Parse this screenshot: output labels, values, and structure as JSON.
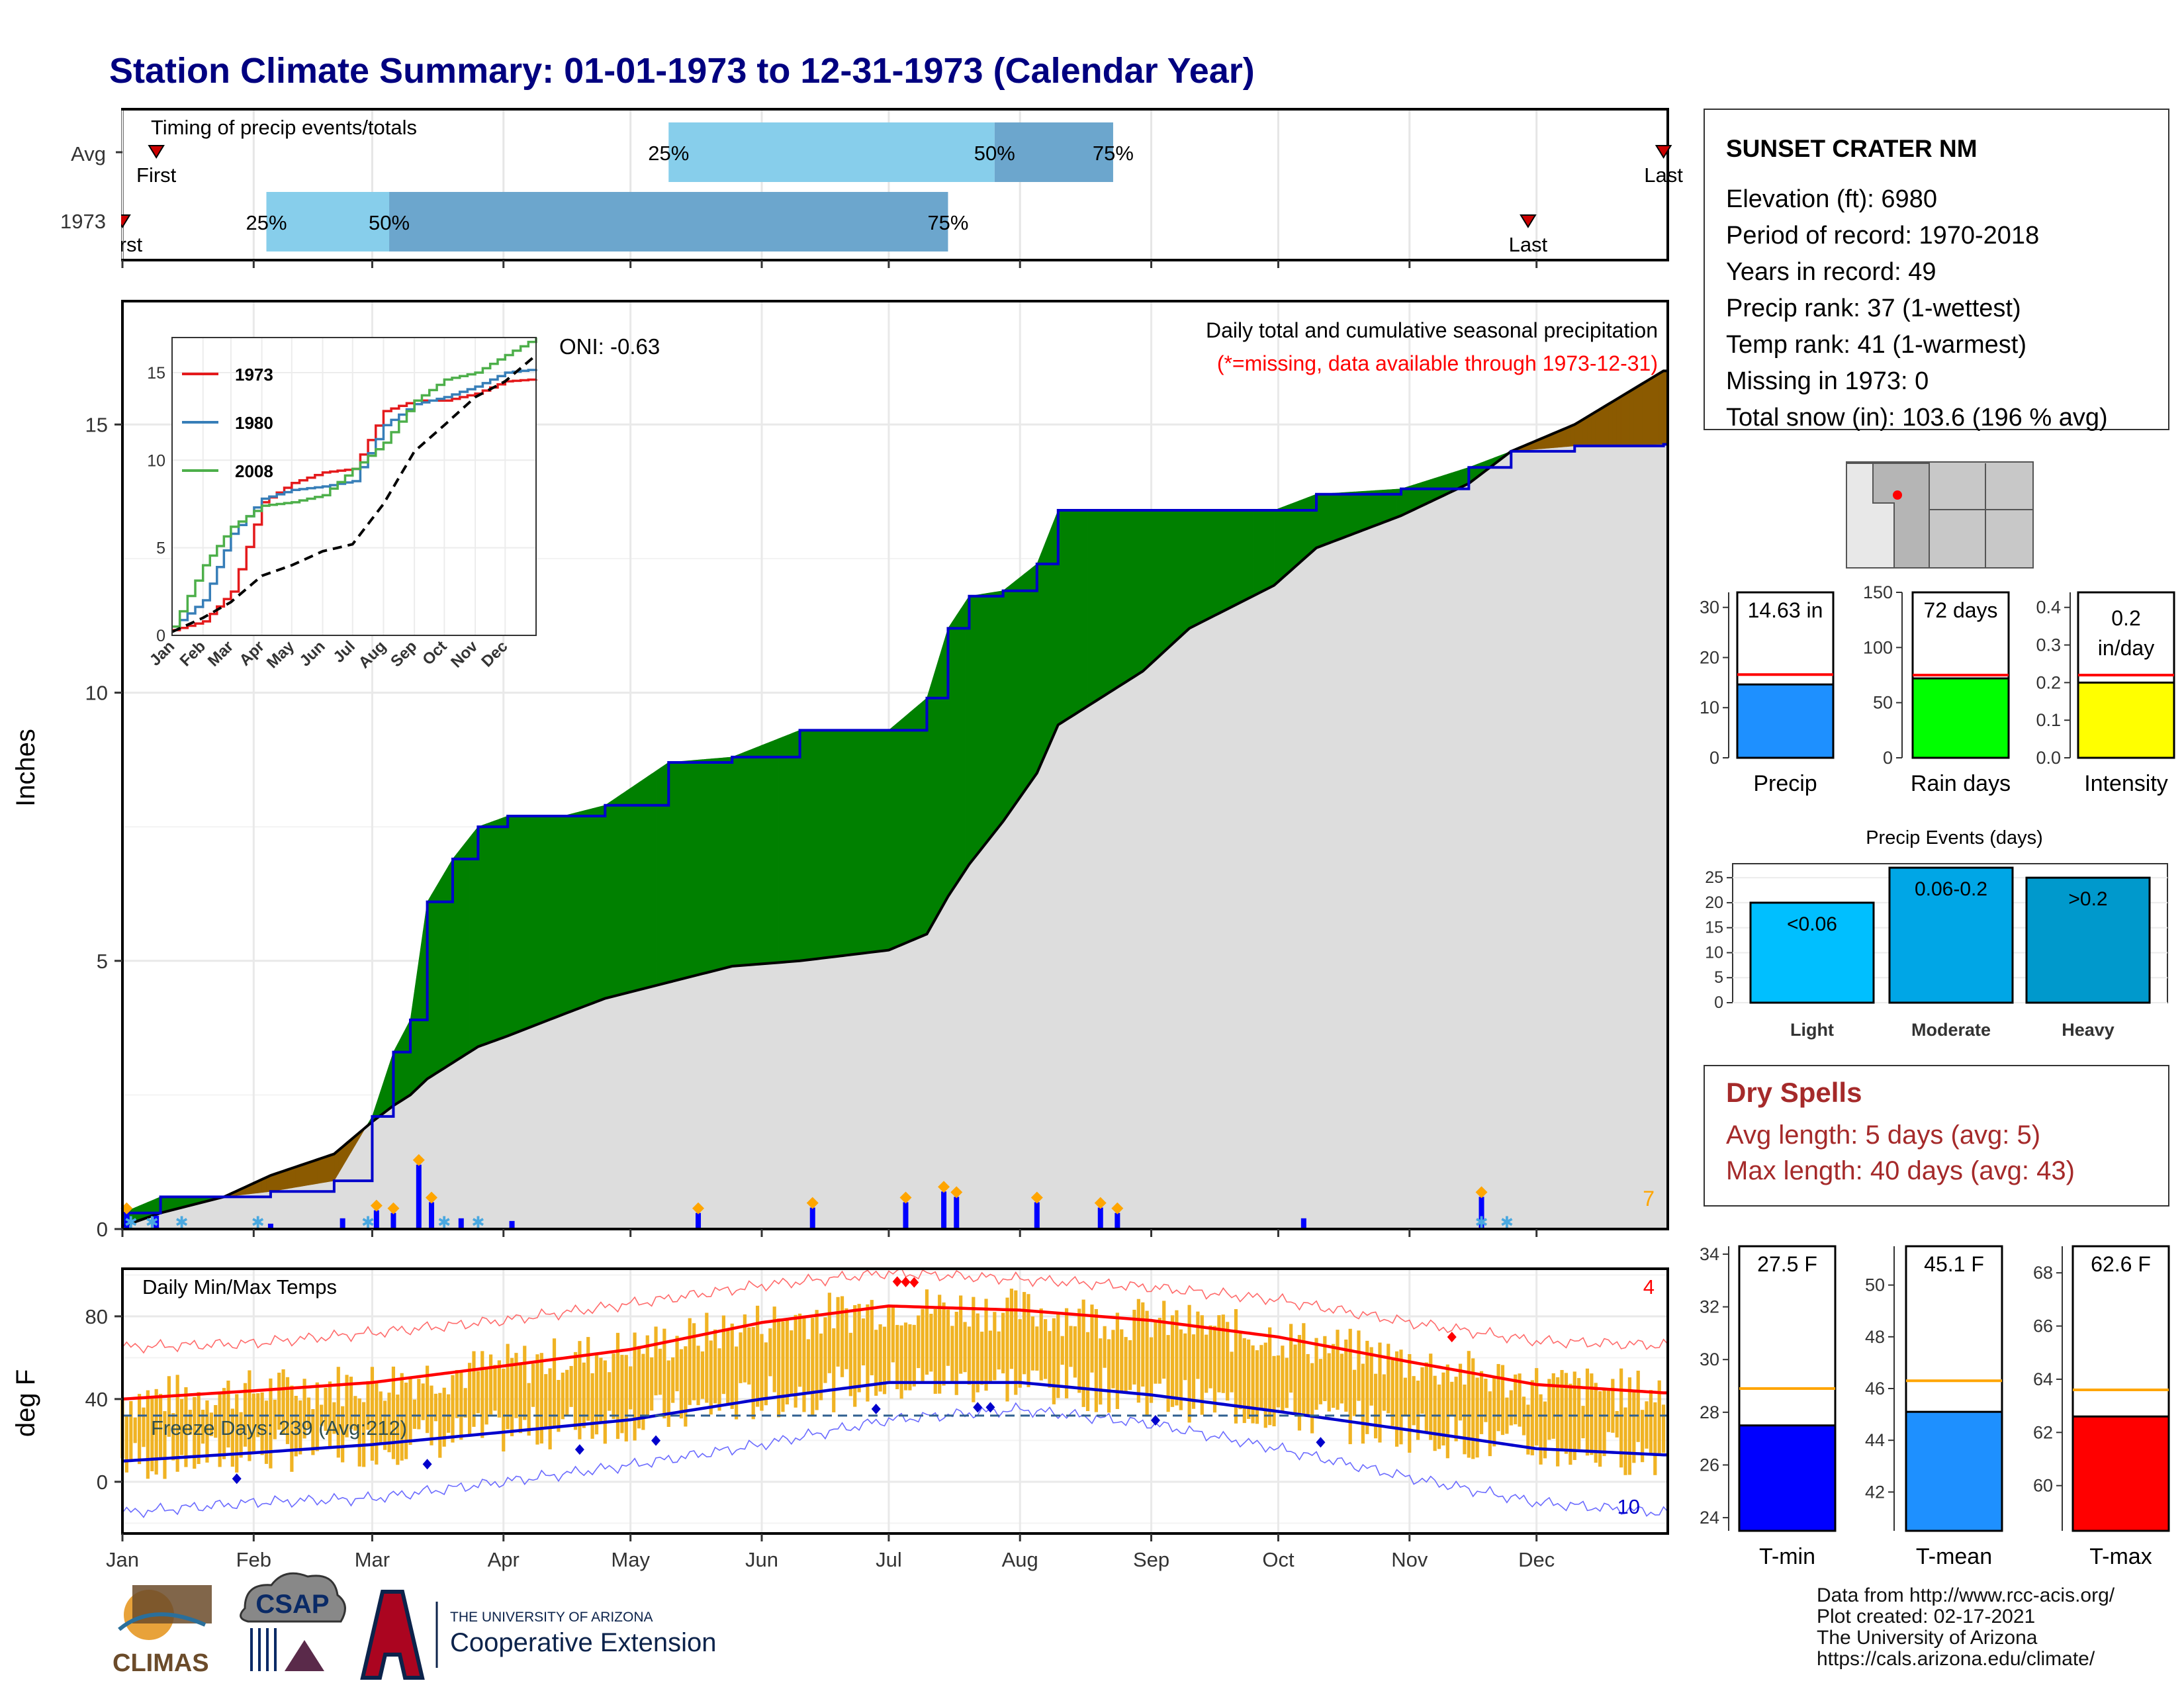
{
  "title": "Station Climate Summary: 01-01-1973 to 12-31-1973 (Calendar Year)",
  "colors": {
    "title": "#000080",
    "normal_fill": "#dddddd",
    "above_fill": "#008000",
    "below_fill": "#8B5A00",
    "cumulative_line": "#0000cc",
    "daily_bar": "#0000ff",
    "light_blue": "#87ceeb",
    "steel_blue": "#6ca6cd",
    "temp_bar": "#f0b323",
    "tmax_line": "#ff0000",
    "tmin_line": "#0000cc",
    "red": "#ff0000",
    "green": "#00ff00",
    "yellow": "#ffff00",
    "dodger": "#1e90ff",
    "dry_spell": "#a52a2a"
  },
  "timing_panel": {
    "label": "Timing of precip events/totals",
    "rows": [
      {
        "name": "Avg",
        "first_label": "First",
        "last_label": "Last",
        "q25_label": "25%",
        "q50_label": "50%",
        "q75_label": "75%"
      },
      {
        "name": "1973",
        "first_label": "First",
        "last_label": "Last",
        "q25_label": "25%",
        "q50_label": "50%",
        "q75_label": "75%"
      }
    ]
  },
  "precip_panel": {
    "ylabel": "Inches",
    "oni": "ONI: -0.63",
    "caption": "Daily total and cumulative seasonal precipitation",
    "missing_note": "(*=missing, data available through 1973-12-31)",
    "corner_count": "7",
    "yticks": [
      "0",
      "5",
      "10",
      "15"
    ]
  },
  "inset": {
    "legend": [
      "1973",
      "1980",
      "2008"
    ],
    "yticks": [
      "0",
      "5",
      "10",
      "15"
    ],
    "xticks": [
      "Jan",
      "Feb",
      "Mar",
      "Apr",
      "May",
      "Jun",
      "Jul",
      "Aug",
      "Sep",
      "Oct",
      "Nov",
      "Dec"
    ],
    "colors": [
      "#e41a1c",
      "#377eb8",
      "#4daf4a"
    ]
  },
  "temp_panel": {
    "ylabel": "deg F",
    "label": "Daily Min/Max Temps",
    "freeze": "Freeze Days: 239 (Avg:212)",
    "corner_max": "4",
    "corner_min": "10",
    "yticks": [
      "0",
      "40",
      "80"
    ],
    "xticks": [
      "Jan",
      "Feb",
      "Mar",
      "Apr",
      "May",
      "Jun",
      "Jul",
      "Aug",
      "Sep",
      "Oct",
      "Nov",
      "Dec"
    ]
  },
  "station": {
    "name": "SUNSET CRATER NM",
    "lines": [
      "Elevation (ft): 6980",
      "Period of record: 1970-2018",
      "Years in record: 49",
      "Precip rank: 37 (1-wettest)",
      "Temp rank: 41 (1-warmest)",
      "Missing in 1973: 0",
      "Total snow (in): 103.6 (196 % avg)"
    ]
  },
  "mini_bars": [
    {
      "label": "Precip",
      "value_text": "14.63 in",
      "value": 14.63,
      "avg": 16.6,
      "ylim": [
        0,
        33
      ],
      "ticks": [
        "0",
        "10",
        "20",
        "30"
      ],
      "tick_vals": [
        0,
        10,
        20,
        30
      ],
      "color": "#1e90ff"
    },
    {
      "label": "Rain days",
      "value_text": "72 days",
      "value": 72,
      "avg": 75,
      "ylim": [
        0,
        150
      ],
      "ticks": [
        "0",
        "50",
        "100",
        "150"
      ],
      "tick_vals": [
        0,
        50,
        100,
        150
      ],
      "color": "#00ff00"
    },
    {
      "label": "Intensity",
      "value_text": "0.2",
      "value_text2": "in/day",
      "value": 0.2,
      "avg": 0.22,
      "ylim": [
        0,
        0.44
      ],
      "ticks": [
        "0.0",
        "0.1",
        "0.2",
        "0.3",
        "0.4"
      ],
      "tick_vals": [
        0,
        0.1,
        0.2,
        0.3,
        0.4
      ],
      "color": "#ffff00"
    }
  ],
  "precip_events": {
    "title": "Precip Events (days)",
    "yticks": [
      "0",
      "5",
      "10",
      "15",
      "20",
      "25"
    ],
    "bars": [
      {
        "label": "Light",
        "text": "<0.06",
        "value": 20,
        "color": "#00bfff"
      },
      {
        "label": "Moderate",
        "text": "0.06-0.2",
        "value": 27,
        "color": "#00a6e6"
      },
      {
        "label": "Heavy",
        "text": ">0.2",
        "value": 25,
        "color": "#0099cc"
      }
    ]
  },
  "dry_spells": {
    "title": "Dry Spells",
    "avg": "Avg length: 5 days (avg: 5)",
    "max": "Max length: 40 days (avg: 43)"
  },
  "temp_bars": [
    {
      "label": "T-min",
      "value_text": "27.5 F",
      "value": 27.5,
      "avg": 28.9,
      "ylim": [
        23.5,
        34.3
      ],
      "ticks": [
        "24",
        "26",
        "28",
        "30",
        "32",
        "34"
      ],
      "tick_vals": [
        24,
        26,
        28,
        30,
        32,
        34
      ],
      "color": "#0000ff"
    },
    {
      "label": "T-mean",
      "value_text": "45.1 F",
      "value": 45.1,
      "avg": 46.3,
      "ylim": [
        40.5,
        51.5
      ],
      "ticks": [
        "42",
        "44",
        "46",
        "48",
        "50"
      ],
      "tick_vals": [
        42,
        44,
        46,
        48,
        50
      ],
      "color": "#1e90ff"
    },
    {
      "label": "T-max",
      "value_text": "62.6 F",
      "value": 62.6,
      "avg": 63.6,
      "ylim": [
        58.3,
        69.0
      ],
      "ticks": [
        "60",
        "62",
        "64",
        "66",
        "68"
      ],
      "tick_vals": [
        60,
        62,
        64,
        66,
        68
      ],
      "color": "#ff0000"
    }
  ],
  "source": {
    "line1": "Data from http://www.rcc-acis.org/",
    "line2": "Plot created: 02-17-2021",
    "line3": "The University of Arizona",
    "line4": "https://cals.arizona.edu/climate/"
  },
  "logos": {
    "climas": "CLIMAS",
    "csap": "CSAP",
    "ua_small": "THE UNIVERSITY OF ARIZONA",
    "ua_big": "Cooperative Extension"
  },
  "chart_data": [
    {
      "type": "bar",
      "title": "Timing of precip events/totals",
      "categories": [
        "Avg",
        "1973"
      ],
      "series": [
        {
          "name": "First",
          "values": [
            "Jan 9",
            "Jan 1"
          ]
        },
        {
          "name": "25%",
          "values": [
            "May 10",
            "Feb 4"
          ]
        },
        {
          "name": "50%",
          "values": [
            "Jul 26",
            "Mar 5"
          ]
        },
        {
          "name": "75%",
          "values": [
            "Aug 23",
            "Jul 15"
          ]
        },
        {
          "name": "Last",
          "values": [
            "Dec 31",
            "Nov 29"
          ]
        }
      ]
    },
    {
      "type": "area",
      "title": "Daily total and cumulative seasonal precipitation",
      "ylabel": "Inches",
      "ylim": [
        0,
        17.3
      ],
      "x": [
        "Jan 1",
        "Jan 10",
        "Jan 25",
        "Feb 5",
        "Feb 20",
        "Mar 1",
        "Mar 6",
        "Mar 10",
        "Mar 14",
        "Mar 20",
        "Mar 26",
        "Apr 2",
        "Apr 15",
        "Apr 25",
        "May 10",
        "May 25",
        "Jun 10",
        "Jul 1",
        "Jul 10",
        "Jul 15",
        "Jul 20",
        "Jul 28",
        "Aug 5",
        "Aug 10",
        "Aug 30",
        "Sep 10",
        "Sep 30",
        "Oct 10",
        "Oct 30",
        "Nov 15",
        "Nov 25",
        "Dec 10",
        "Dec 31"
      ],
      "series": [
        {
          "name": "",
          "values": [
            0.3,
            0.6,
            0.6,
            0.7,
            0.9,
            2.1,
            3.3,
            3.9,
            6.1,
            6.9,
            7.5,
            7.7,
            7.7,
            7.9,
            8.7,
            8.8,
            9.3,
            9.3,
            9.9,
            11.2,
            11.8,
            11.9,
            12.4,
            13.4,
            13.4,
            13.4,
            13.4,
            13.7,
            13.8,
            14.2,
            14.5,
            14.6,
            14.63
          ]
        },
        {
          "name": "",
          "values": [
            0.05,
            0.3,
            0.6,
            1.0,
            1.4,
            2.0,
            2.3,
            2.5,
            2.8,
            3.1,
            3.4,
            3.6,
            4.0,
            4.3,
            4.6,
            4.9,
            5.0,
            5.2,
            5.5,
            6.2,
            6.8,
            7.6,
            8.5,
            9.4,
            10.4,
            11.2,
            12.0,
            12.7,
            13.3,
            13.9,
            14.5,
            15.0,
            16.0
          ]
        }
      ],
      "daily_values": [
        {
          "date": "Jan 2",
          "value": 0.3
        },
        {
          "date": "Jan 9",
          "value": 0.25
        },
        {
          "date": "Feb 5",
          "value": 0.1
        },
        {
          "date": "Feb 22",
          "value": 0.2
        },
        {
          "date": "Mar 2",
          "value": 0.35
        },
        {
          "date": "Mar 6",
          "value": 0.3
        },
        {
          "date": "Mar 12",
          "value": 1.2
        },
        {
          "date": "Mar 15",
          "value": 0.5
        },
        {
          "date": "Mar 22",
          "value": 0.2
        },
        {
          "date": "Apr 3",
          "value": 0.15
        },
        {
          "date": "May 17",
          "value": 0.3
        },
        {
          "date": "Jun 13",
          "value": 0.4
        },
        {
          "date": "Jul 5",
          "value": 0.5
        },
        {
          "date": "Jul 14",
          "value": 0.7
        },
        {
          "date": "Jul 17",
          "value": 0.6
        },
        {
          "date": "Aug 5",
          "value": 0.5
        },
        {
          "date": "Aug 20",
          "value": 0.4
        },
        {
          "date": "Aug 24",
          "value": 0.3
        },
        {
          "date": "Oct 7",
          "value": 0.2
        },
        {
          "date": "Nov 18",
          "value": 0.6
        }
      ]
    },
    {
      "type": "line",
      "title": "",
      "ylim": [
        0,
        17
      ],
      "x": [
        "Jan",
        "Feb",
        "Mar",
        "Apr",
        "May",
        "Jun",
        "Jul",
        "Aug",
        "Sep",
        "Oct",
        "Nov",
        "Dec",
        "Dec 31"
      ],
      "series": [
        {
          "name": "1973",
          "values": [
            0.3,
            0.8,
            2.5,
            7.6,
            8.7,
            9.3,
            9.5,
            12.8,
            13.4,
            13.4,
            13.8,
            14.5,
            14.63
          ]
        },
        {
          "name": "1980",
          "values": [
            0.5,
            2.0,
            5.8,
            7.8,
            8.3,
            8.5,
            8.8,
            12.0,
            13.2,
            13.6,
            14.2,
            15.0,
            15.2
          ]
        },
        {
          "name": "2008",
          "values": [
            0.5,
            4.0,
            6.2,
            7.4,
            7.6,
            8.0,
            9.5,
            11.0,
            13.4,
            14.6,
            15.0,
            16.0,
            17.0
          ]
        },
        {
          "name": "",
          "values": [
            0.2,
            1.0,
            1.9,
            3.4,
            4.0,
            4.8,
            5.2,
            7.5,
            10.5,
            12.0,
            13.6,
            14.5,
            16.0
          ]
        }
      ]
    },
    {
      "type": "line",
      "title": "Daily Min/Max Temps",
      "ylabel": "deg F",
      "ylim": [
        -25,
        103
      ],
      "x": [
        "Jan 1",
        "Feb 1",
        "Mar 1",
        "Apr 1",
        "May 1",
        "Jun 1",
        "Jul 1",
        "Aug 1",
        "Sep 1",
        "Oct 1",
        "Nov 1",
        "Dec 1",
        "Dec 31"
      ],
      "series": [
        {
          "name": "",
          "values": [
            40,
            44,
            48,
            56,
            64,
            77,
            85,
            83,
            78,
            70,
            58,
            47,
            43
          ]
        },
        {
          "name": "",
          "values": [
            10,
            14,
            18,
            24,
            30,
            40,
            48,
            48,
            42,
            34,
            25,
            16,
            13
          ]
        },
        {
          "name": "",
          "values": [
            65,
            67,
            72,
            78,
            86,
            95,
            101,
            98,
            94,
            88,
            77,
            68,
            66
          ]
        },
        {
          "name": "",
          "values": [
            -15,
            -10,
            -8,
            0,
            8,
            18,
            30,
            35,
            28,
            16,
            2,
            -10,
            -15
          ]
        }
      ],
      "freeze_line": 32,
      "freeze_days": 239,
      "freeze_days_avg": 212
    },
    {
      "type": "bar",
      "title": "Precip Events (days)",
      "categories": [
        "Light",
        "Moderate",
        "Heavy"
      ],
      "values": [
        20,
        27,
        25
      ]
    }
  ]
}
